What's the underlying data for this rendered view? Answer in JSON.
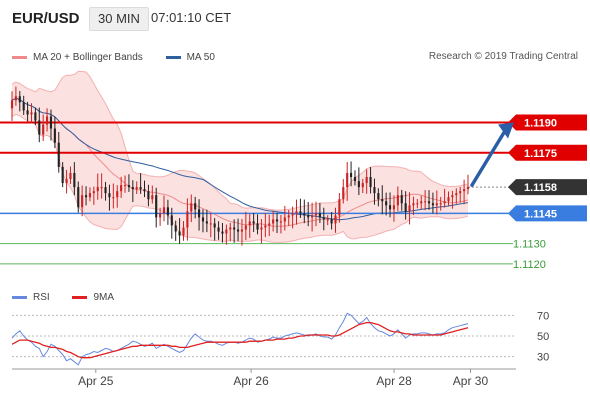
{
  "header": {
    "symbol": "EUR/USD",
    "interval": "30 MIN",
    "time": "07:01:10 CET"
  },
  "legend": [
    {
      "label": "MA 20 + Bollinger Bands",
      "color": "#f08a8a"
    },
    {
      "label": "MA 50",
      "color": "#2f5f9e"
    }
  ],
  "copyright": "Research © 2019 Trading Central",
  "rsi_legend": [
    {
      "label": "RSI",
      "color": "#6688dd"
    },
    {
      "label": "9MA",
      "color": "#e02020"
    }
  ],
  "chart_data": [
    {
      "type": "candlestick",
      "panel": "price",
      "ylim": [
        1.1112,
        1.1216
      ],
      "x_ticks": [
        "Apr 25",
        "Apr 26",
        "Apr 28",
        "Apr 30"
      ],
      "last_price": {
        "label": "1.1158",
        "value": 1.1158
      },
      "levels": [
        {
          "label": "1.1190",
          "value": 1.119,
          "color": "#e00000",
          "role": "resistance"
        },
        {
          "label": "1.1175",
          "value": 1.1175,
          "color": "#e00000",
          "role": "resistance"
        },
        {
          "label": "1.1145",
          "value": 1.1145,
          "color": "#3a7de0",
          "role": "pivot"
        },
        {
          "label": "1.1130",
          "value": 1.113,
          "color": "#5cb85c",
          "role": "support"
        },
        {
          "label": "1.1120",
          "value": 1.112,
          "color": "#5cb85c",
          "role": "support"
        }
      ],
      "close": [
        1.1201,
        1.1203,
        1.12,
        1.1196,
        1.1194,
        1.1195,
        1.1191,
        1.1184,
        1.1189,
        1.1193,
        1.1187,
        1.118,
        1.1168,
        1.116,
        1.1162,
        1.1165,
        1.1158,
        1.1148,
        1.1154,
        1.1153,
        1.1155,
        1.1156,
        1.1158,
        1.1158,
        1.1155,
        1.1153,
        1.1153,
        1.1156,
        1.1159,
        1.1159,
        1.1158,
        1.1157,
        1.1158,
        1.1157,
        1.1156,
        1.1152,
        1.1154,
        1.1143,
        1.1145,
        1.1148,
        1.1144,
        1.1139,
        1.1136,
        1.1134,
        1.1138,
        1.1146,
        1.115,
        1.1147,
        1.1143,
        1.1141,
        1.114,
        1.114,
        1.1138,
        1.1136,
        1.1135,
        1.1137,
        1.1138,
        1.1137,
        1.1136,
        1.1137,
        1.1139,
        1.1141,
        1.114,
        1.1137,
        1.1138,
        1.1139,
        1.114,
        1.1142,
        1.1141,
        1.1141,
        1.1143,
        1.1144,
        1.1145,
        1.1146,
        1.1145,
        1.1144,
        1.1143,
        1.1144,
        1.1145,
        1.1143,
        1.1142,
        1.1142,
        1.114,
        1.1144,
        1.1152,
        1.1158,
        1.1165,
        1.1163,
        1.1161,
        1.1158,
        1.116,
        1.1163,
        1.1158,
        1.1155,
        1.1152,
        1.1151,
        1.1149,
        1.1147,
        1.1149,
        1.1154,
        1.115,
        1.1146,
        1.1149,
        1.115,
        1.115,
        1.1151,
        1.1151,
        1.115,
        1.1149,
        1.115,
        1.115,
        1.1151,
        1.1153,
        1.1154,
        1.1155,
        1.1156,
        1.1157,
        1.1158
      ],
      "x_period_minutes": 30
    },
    {
      "type": "line",
      "panel": "rsi",
      "ylim": [
        20,
        80
      ],
      "y_ticks": [
        30,
        50,
        70
      ],
      "series": [
        {
          "name": "RSI",
          "color": "#6688dd",
          "values": [
            48,
            52,
            55,
            50,
            46,
            44,
            40,
            38,
            30,
            35,
            42,
            40,
            36,
            32,
            26,
            28,
            25,
            22,
            30,
            32,
            33,
            35,
            34,
            36,
            38,
            37,
            35,
            36,
            38,
            40,
            42,
            45,
            44,
            42,
            40,
            41,
            43,
            38,
            40,
            42,
            40,
            38,
            36,
            34,
            36,
            42,
            48,
            52,
            49,
            46,
            45,
            45,
            44,
            42,
            41,
            43,
            44,
            44,
            43,
            44,
            46,
            48,
            47,
            44,
            45,
            46,
            47,
            49,
            48,
            48,
            50,
            51,
            52,
            53,
            52,
            51,
            50,
            51,
            52,
            50,
            49,
            49,
            47,
            51,
            58,
            64,
            72,
            70,
            66,
            62,
            64,
            68,
            62,
            58,
            55,
            54,
            52,
            50,
            52,
            56,
            52,
            48,
            51,
            52,
            52,
            53,
            53,
            52,
            51,
            52,
            52,
            53,
            56,
            58,
            59,
            60,
            61,
            62
          ]
        },
        {
          "name": "9MA",
          "color": "#e02020",
          "values": [
            42,
            44,
            46,
            46,
            46,
            45,
            44,
            43,
            41,
            40,
            39,
            39,
            38,
            37,
            35,
            34,
            32,
            30,
            29,
            29,
            29,
            30,
            31,
            32,
            33,
            34,
            35,
            36,
            37,
            38,
            39,
            40,
            40,
            41,
            41,
            41,
            41,
            41,
            41,
            41,
            41,
            40,
            40,
            39,
            39,
            39,
            40,
            41,
            42,
            43,
            44,
            44,
            44,
            44,
            44,
            44,
            44,
            44,
            44,
            44,
            44,
            45,
            45,
            45,
            45,
            46,
            46,
            46,
            47,
            47,
            47,
            48,
            48,
            49,
            50,
            50,
            51,
            51,
            51,
            51,
            51,
            51,
            50,
            50,
            51,
            53,
            55,
            57,
            59,
            61,
            62,
            63,
            63,
            62,
            61,
            59,
            57,
            55,
            54,
            54,
            53,
            52,
            52,
            51,
            51,
            51,
            51,
            51,
            51,
            51,
            51,
            52,
            53,
            54,
            55,
            56,
            57,
            58
          ]
        }
      ]
    }
  ]
}
